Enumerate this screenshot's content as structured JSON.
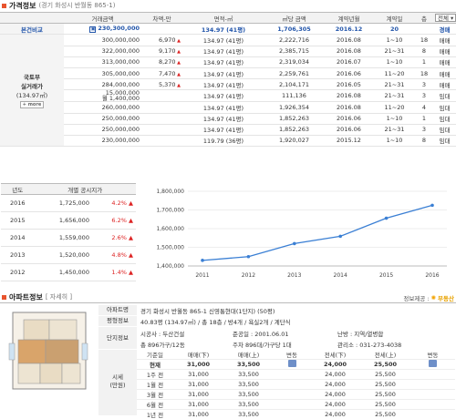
{
  "price_section": {
    "title": "가격정보",
    "address": "(경기 화성시 반월동 865-1)",
    "headers": [
      "거래금액",
      "차액-만",
      "면적-㎡",
      "㎡당 금액",
      "계약년월",
      "계약일",
      "층"
    ],
    "filter_value": "전체",
    "ref_row": {
      "label": "본건비교",
      "amount": "230,300,000",
      "area": "134.97 (41평)",
      "per_m2": "1,706,305",
      "ym": "2016.12",
      "day": "20",
      "type": "경매"
    },
    "left_label_line1": "국토부",
    "left_label_line2": "실거래가",
    "left_label_area": "(134.97㎡)",
    "more_label": "+ more",
    "rows": [
      {
        "amount": "300,000,000",
        "diff": "6,970",
        "up": true,
        "area": "134.97 (41평)",
        "per_m2": "2,222,716",
        "ym": "2016.08",
        "day": "1~10",
        "floor": "18",
        "type": "매매"
      },
      {
        "amount": "322,000,000",
        "diff": "9,170",
        "up": true,
        "area": "134.97 (41평)",
        "per_m2": "2,385,715",
        "ym": "2016.08",
        "day": "21~31",
        "floor": "8",
        "type": "매매"
      },
      {
        "amount": "313,000,000",
        "diff": "8,270",
        "up": true,
        "area": "134.97 (41평)",
        "per_m2": "2,319,034",
        "ym": "2016.07",
        "day": "1~10",
        "floor": "1",
        "type": "매매"
      },
      {
        "amount": "305,000,000",
        "diff": "7,470",
        "up": true,
        "area": "134.97 (41평)",
        "per_m2": "2,259,761",
        "ym": "2016.06",
        "day": "11~20",
        "floor": "18",
        "type": "매매"
      },
      {
        "amount": "284,000,000",
        "diff": "5,370",
        "up": true,
        "area": "134.97 (41평)",
        "per_m2": "2,104,171",
        "ym": "2016.05",
        "day": "21~31",
        "floor": "3",
        "type": "매매"
      },
      {
        "amount": "15,000,000",
        "amount2": "월 1,400,000",
        "diff": "",
        "up": false,
        "area": "134.97 (41평)",
        "per_m2": "111,136",
        "ym": "2016.08",
        "day": "21~31",
        "floor": "3",
        "type": "임대"
      },
      {
        "amount": "260,000,000",
        "diff": "",
        "up": false,
        "area": "134.97 (41평)",
        "per_m2": "1,926,354",
        "ym": "2016.08",
        "day": "11~20",
        "floor": "4",
        "type": "임대"
      },
      {
        "amount": "250,000,000",
        "diff": "",
        "up": false,
        "area": "134.97 (41평)",
        "per_m2": "1,852,263",
        "ym": "2016.06",
        "day": "1~10",
        "floor": "1",
        "type": "임대"
      },
      {
        "amount": "250,000,000",
        "diff": "",
        "up": false,
        "area": "134.97 (41평)",
        "per_m2": "1,852,263",
        "ym": "2016.06",
        "day": "21~31",
        "floor": "3",
        "type": "임대"
      },
      {
        "amount": "230,000,000",
        "diff": "",
        "up": false,
        "area": "119.79 (36평)",
        "per_m2": "1,920,027",
        "ym": "2015.12",
        "day": "1~10",
        "floor": "8",
        "type": "임대"
      }
    ]
  },
  "official": {
    "headers": [
      "년도",
      "개별 공시지가"
    ],
    "rows": [
      {
        "year": "2016",
        "price": "1,725,000",
        "pct": "4.2%"
      },
      {
        "year": "2015",
        "price": "1,656,000",
        "pct": "6.2%"
      },
      {
        "year": "2014",
        "price": "1,559,000",
        "pct": "2.6%"
      },
      {
        "year": "2013",
        "price": "1,520,000",
        "pct": "4.8%"
      },
      {
        "year": "2012",
        "price": "1,450,000",
        "pct": "1.4%"
      }
    ]
  },
  "chart_data": {
    "type": "line",
    "x": [
      "2011",
      "2012",
      "2013",
      "2014",
      "2015",
      "2016"
    ],
    "series": [
      {
        "values": [
          1430000,
          1450000,
          1520000,
          1559000,
          1656000,
          1725000
        ]
      }
    ],
    "yticks": [
      "1,800,000",
      "1,700,000",
      "1,600,000",
      "1,500,000",
      "1,400,000"
    ],
    "ylim": [
      1400000,
      1800000
    ],
    "color": "#3a7fd4"
  },
  "apt": {
    "title": "아파트정보",
    "sub": "[ 자세히 ]",
    "brand_prefix": "정보제공 :",
    "brand_name": "부동산",
    "name_label": "아파트명",
    "name_value": "경기 화성시 반월동 865-1 신영통현대(1단지) (50평)",
    "area_label": "평형정보",
    "area_value": "40.83평 (134.97㎡) / 총 18층 / 방4개 / 욕실2개 / 계단식",
    "complex_label": "단지정보",
    "builder": "시공사 : 두산건설",
    "completed": "준공일 : 2001.06.01",
    "heating": "난방 : 지역/열병합",
    "households": "총 896가구/12동",
    "parking": "주차 896대/가구당 1대",
    "office": "관리소 : 031-273-4038",
    "quote_label1": "시세",
    "quote_label2": "(만원)",
    "quote_headers": [
      "기준일",
      "매매(下)",
      "매매(上)",
      "변동",
      "전세(下)",
      "전세(上)",
      "변동"
    ],
    "quote_rows": [
      [
        "현재",
        "31,000",
        "33,500",
        "",
        "24,000",
        "25,500",
        ""
      ],
      [
        "1주 전",
        "31,000",
        "33,500",
        "",
        "24,000",
        "25,500",
        ""
      ],
      [
        "1월 전",
        "31,000",
        "33,500",
        "",
        "24,000",
        "25,500",
        ""
      ],
      [
        "3월 전",
        "31,000",
        "33,500",
        "",
        "24,000",
        "25,500",
        ""
      ],
      [
        "6월 전",
        "31,000",
        "33,500",
        "",
        "24,000",
        "25,500",
        ""
      ],
      [
        "1년 전",
        "31,000",
        "33,500",
        "",
        "24,000",
        "25,500",
        ""
      ]
    ]
  }
}
